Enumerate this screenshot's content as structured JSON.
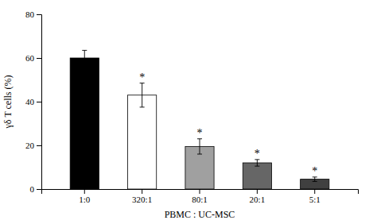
{
  "chart_data": {
    "type": "bar",
    "categories": [
      "1:0",
      "320:1",
      "80:1",
      "20:1",
      "5:1"
    ],
    "values": [
      60.0,
      43.0,
      19.5,
      12.0,
      4.5
    ],
    "errors": [
      3.5,
      5.5,
      3.5,
      1.5,
      1.0
    ],
    "annotations": [
      null,
      "*",
      "*",
      "*",
      "*"
    ],
    "colors": [
      "#000000",
      "#ffffff",
      "#a0a0a0",
      "#666666",
      "#404040"
    ],
    "xlabel": "PBMC : UC-MSC",
    "ylabel": "γδ T cells (%)",
    "ylim": [
      0,
      80
    ],
    "yticks": [
      0,
      20,
      40,
      60,
      80
    ],
    "grid": false
  }
}
